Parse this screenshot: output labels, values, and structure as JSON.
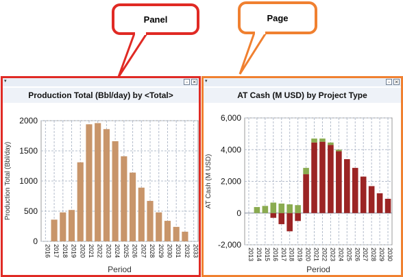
{
  "callouts": {
    "panel": "Panel",
    "page": "Page"
  },
  "icons": {
    "menu": "menu-arrow-icon",
    "restore": "restore-window-icon",
    "close": "close-icon"
  },
  "colors": {
    "panel_outline": "#e02a24",
    "page_outline": "#f08030",
    "production_bar": "#c8956a",
    "positive_cash": "#9b2424",
    "negative_cash": "#8aab50"
  },
  "chart_data": [
    {
      "type": "bar",
      "title": "Production Total (Bbl/day) by <Total>",
      "xlabel": "Period",
      "ylabel": "Production Total (Bbl/day)",
      "ylim": [
        0,
        2000
      ],
      "yticks": [
        "0",
        "500",
        "1000",
        "1500",
        "2000"
      ],
      "categories": [
        "2016",
        "2017",
        "2018",
        "2019",
        "2020",
        "2021",
        "2022",
        "2023",
        "2024",
        "2025",
        "2026",
        "2027",
        "2028",
        "2029",
        "2030",
        "2031",
        "2032",
        "2033"
      ],
      "values": [
        0,
        360,
        480,
        520,
        1310,
        1940,
        1960,
        1860,
        1660,
        1410,
        1140,
        890,
        670,
        480,
        340,
        240,
        160,
        0
      ],
      "grid": true
    },
    {
      "type": "bar",
      "title": "AT Cash (M USD) by Project Type",
      "xlabel": "Period",
      "ylabel": "AT Cash (M USD)",
      "ylim": [
        -2000,
        6000
      ],
      "yticks": [
        "-2,000",
        "0",
        "2,000",
        "4,000",
        "6,000"
      ],
      "categories": [
        "2013",
        "2014",
        "2015",
        "2016",
        "2017",
        "2018",
        "2019",
        "2020",
        "2021",
        "2022",
        "2023",
        "2024",
        "2025",
        "2026",
        "2027",
        "2028",
        "2029",
        "2030"
      ],
      "series": [
        {
          "values": [
            0,
            0,
            0,
            -300,
            -700,
            -1150,
            -500,
            2450,
            4450,
            4500,
            4300,
            3900,
            3400,
            2850,
            2300,
            1700,
            1250,
            900
          ]
        },
        {
          "values": [
            0,
            380,
            450,
            660,
            600,
            550,
            500,
            400,
            250,
            200,
            150,
            100,
            0,
            0,
            0,
            0,
            0,
            0
          ]
        }
      ],
      "grid": true
    }
  ]
}
